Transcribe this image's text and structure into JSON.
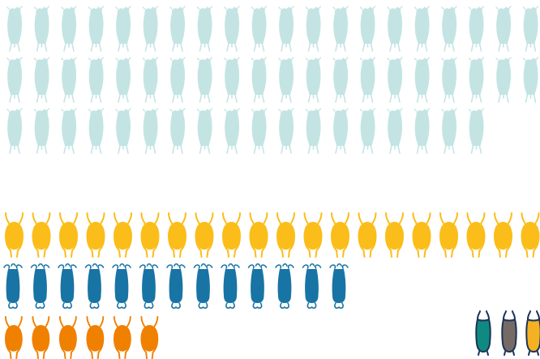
{
  "icons": {
    "seated_figure": "seated-figure-icon",
    "horned_figure": "horned-figure-icon",
    "swirl_figure": "swirl-figure-icon"
  },
  "colors": {
    "light_teal": "#c4e4e4",
    "amber": "#fbbd1a",
    "blue": "#1874a4",
    "orange": "#f08000",
    "outline_navy": "#1b3357",
    "legend_teal": "#0f8a80",
    "legend_gray": "#766a66",
    "legend_yellow": "#f4b223"
  },
  "groups": [
    {
      "name": "light-teal-group",
      "icon": "seated_figure",
      "color": "light_teal",
      "count": 58
    },
    {
      "name": "amber-group",
      "icon": "horned_figure",
      "color": "amber",
      "count": 20
    },
    {
      "name": "blue-group",
      "icon": "swirl_figure",
      "color": "blue",
      "count": 13
    },
    {
      "name": "orange-group",
      "icon": "horned_figure",
      "color": "orange",
      "count": 6
    }
  ],
  "legend": [
    {
      "name": "legend-teal-figure",
      "color": "legend_teal"
    },
    {
      "name": "legend-gray-figure",
      "color": "legend_gray"
    },
    {
      "name": "legend-yellow-figure",
      "color": "legend_yellow"
    }
  ]
}
